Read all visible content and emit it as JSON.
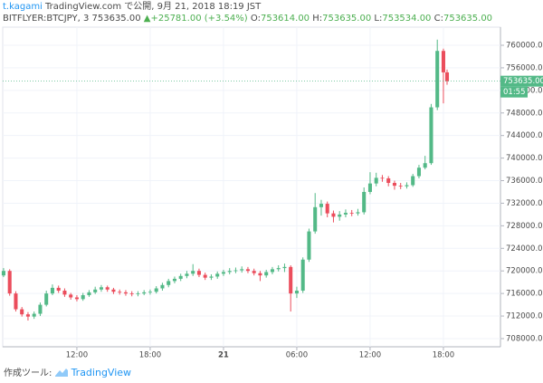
{
  "header": {
    "author": "t.kagami",
    "published": "TradingView.com で公開, 9月 21, 2018 18:19 JST"
  },
  "chart_data": {
    "type": "candlestick",
    "symbol": "BITFLYER:BTCJPY, 3",
    "last": "753635.00",
    "change_arrow": "▲",
    "change": "+25781.00 (+3.54%)",
    "ohlc_labels": [
      "O:",
      "H:",
      "L:",
      "C:"
    ],
    "ohlc_values": [
      "753614.00",
      "753635.00",
      "753534.00",
      "753635.00"
    ],
    "price_tag": "753635.00",
    "countdown": "01:55",
    "up_color": "#53b987",
    "down_color": "#eb4d5c",
    "tag_color": "#53b987",
    "grid": true,
    "xlim": [
      5.93,
      46.67
    ],
    "ylim": [
      706550,
      763210
    ],
    "xticks": [
      {
        "value": 12,
        "label": "12:00"
      },
      {
        "value": 18,
        "label": "18:00"
      },
      {
        "value": 24,
        "label": "21"
      },
      {
        "value": 30,
        "label": "06:00"
      },
      {
        "value": 36,
        "label": "12:00"
      },
      {
        "value": 42,
        "label": "18:00"
      }
    ],
    "yticks": [
      {
        "value": 708000,
        "label": "708000.00"
      },
      {
        "value": 712000,
        "label": "712000.00"
      },
      {
        "value": 716000,
        "label": "716000.00"
      },
      {
        "value": 720000,
        "label": "720000.00"
      },
      {
        "value": 724000,
        "label": "724000.00"
      },
      {
        "value": 728000,
        "label": "728000.00"
      },
      {
        "value": 732000,
        "label": "732000.00"
      },
      {
        "value": 736000,
        "label": "736000.00"
      },
      {
        "value": 740000,
        "label": "740000.00"
      },
      {
        "value": 744000,
        "label": "744000.00"
      },
      {
        "value": 748000,
        "label": "748000.00"
      },
      {
        "value": 752000,
        "label": "752000.00"
      },
      {
        "value": 756000,
        "label": "756000.00"
      },
      {
        "value": 760000,
        "label": "760000.00"
      }
    ],
    "x": [
      6,
      6.5,
      7,
      7.5,
      8,
      8.5,
      9,
      9.5,
      10,
      10.5,
      11,
      11.5,
      12,
      12.5,
      13,
      13.5,
      14,
      14.5,
      15,
      15.5,
      16,
      16.5,
      17,
      17.5,
      18,
      18.5,
      19,
      19.5,
      20,
      20.5,
      21,
      21.5,
      22,
      22.5,
      23,
      23.5,
      24,
      24.5,
      25,
      25.5,
      26,
      26.5,
      27,
      27.5,
      28,
      28.5,
      29,
      29.5,
      30,
      30.5,
      31,
      31.5,
      32,
      32.5,
      33,
      33.5,
      34,
      34.5,
      35,
      35.5,
      36,
      36.5,
      37,
      37.5,
      38,
      38.5,
      39,
      39.5,
      40,
      40.5,
      41,
      41.5,
      42,
      42.3
    ],
    "open": [
      719200,
      720000,
      716000,
      713200,
      712300,
      711900,
      712400,
      714000,
      716000,
      717000,
      716500,
      715800,
      715300,
      715000,
      715700,
      716200,
      716700,
      717100,
      716700,
      716300,
      716200,
      716000,
      715900,
      716000,
      716200,
      716300,
      716900,
      717500,
      718200,
      718600,
      719100,
      719500,
      720000,
      719300,
      718800,
      719000,
      719500,
      719800,
      720000,
      720100,
      720300,
      720000,
      719600,
      719200,
      719800,
      720300,
      720500,
      720700,
      716000,
      716500,
      722000,
      727000,
      731300,
      731900,
      730200,
      729600,
      730000,
      730300,
      730200,
      730400,
      734000,
      735500,
      736500,
      736400,
      735600,
      735100,
      735000,
      735200,
      736800,
      738300,
      739100,
      749000,
      759000,
      755200
    ],
    "high": [
      720500,
      720300,
      716400,
      713600,
      712700,
      712800,
      714400,
      716500,
      717600,
      717400,
      716900,
      716100,
      715700,
      716100,
      716600,
      717200,
      717500,
      717400,
      717000,
      716700,
      716600,
      716400,
      716400,
      716600,
      716700,
      717300,
      717900,
      718600,
      719000,
      719500,
      720000,
      721200,
      720400,
      719700,
      719400,
      719900,
      720200,
      720500,
      720600,
      720800,
      720700,
      720400,
      720000,
      720200,
      720700,
      721000,
      721300,
      721000,
      717200,
      722400,
      727500,
      733800,
      732600,
      732300,
      730700,
      730600,
      730900,
      730800,
      731000,
      734800,
      737500,
      737400,
      737000,
      736800,
      736000,
      735600,
      735700,
      737200,
      738800,
      740400,
      749600,
      761000,
      759400,
      755700
    ],
    "low": [
      718900,
      715600,
      712800,
      711900,
      711200,
      711500,
      712000,
      713700,
      715700,
      716100,
      715400,
      714900,
      714600,
      714700,
      715400,
      715900,
      716300,
      716300,
      715900,
      715800,
      715600,
      715500,
      715500,
      715700,
      715800,
      716000,
      716500,
      717100,
      717800,
      718200,
      718700,
      719100,
      718900,
      718400,
      718400,
      718600,
      719100,
      719400,
      719600,
      719700,
      719600,
      719200,
      718200,
      718800,
      719400,
      719900,
      719800,
      712800,
      715200,
      716100,
      721600,
      726600,
      729800,
      729500,
      728600,
      728900,
      729500,
      729700,
      729800,
      730000,
      733600,
      735000,
      735800,
      735000,
      734400,
      734500,
      734600,
      734900,
      736400,
      738000,
      738800,
      748500,
      749700,
      753000
    ],
    "close": [
      720000,
      716000,
      713200,
      712300,
      711900,
      712400,
      714000,
      716000,
      717000,
      716500,
      715800,
      715300,
      715000,
      715700,
      716200,
      716700,
      717100,
      716700,
      716300,
      716200,
      716000,
      715900,
      716000,
      716200,
      716300,
      716900,
      717500,
      718200,
      718600,
      719100,
      719500,
      720000,
      719300,
      718800,
      719000,
      719500,
      719800,
      720000,
      720100,
      720300,
      720000,
      719600,
      719200,
      719800,
      720300,
      720500,
      720700,
      716000,
      716500,
      722000,
      727000,
      731300,
      731900,
      730200,
      729600,
      730000,
      730300,
      730200,
      730400,
      734000,
      735500,
      736500,
      736400,
      735600,
      735100,
      735000,
      735200,
      736800,
      738300,
      739100,
      749000,
      759000,
      755200,
      753635
    ]
  },
  "footer": {
    "made_with": "作成ツール:",
    "brand": "TradingView"
  }
}
